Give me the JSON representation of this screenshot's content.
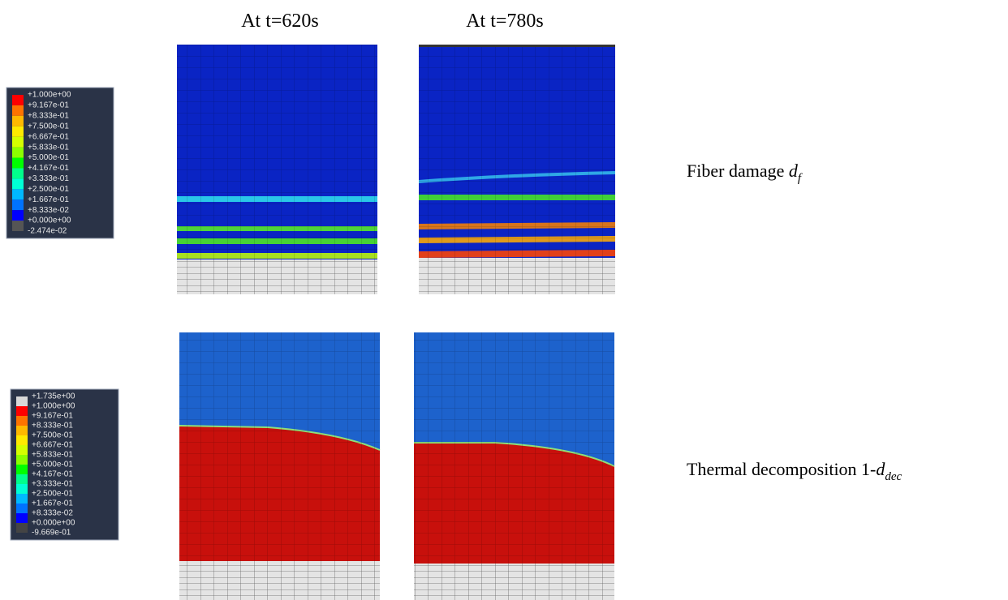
{
  "columns": [
    "At t=620s",
    "At t=780s"
  ],
  "legends": [
    {
      "labels": [
        "+1.000e+00",
        "+9.167e-01",
        "+8.333e-01",
        "+7.500e-01",
        "+6.667e-01",
        "+5.833e-01",
        "+5.000e-01",
        "+4.167e-01",
        "+3.333e-01",
        "+2.500e-01",
        "+1.667e-01",
        "+8.333e-02",
        "+0.000e+00",
        "-2.474e-02"
      ]
    },
    {
      "labels": [
        "+1.735e+00",
        "+1.000e+00",
        "+9.167e-01",
        "+8.333e-01",
        "+7.500e-01",
        "+6.667e-01",
        "+5.833e-01",
        "+5.000e-01",
        "+4.167e-01",
        "+3.333e-01",
        "+2.500e-01",
        "+1.667e-01",
        "+8.333e-02",
        "+0.000e+00",
        "-9.669e-01"
      ]
    }
  ],
  "rows": [
    {
      "label": "Fiber damage ",
      "symbol": "d",
      "subscript": "f"
    },
    {
      "label": "Thermal decomposition 1-",
      "symbol": "d",
      "subscript": "dec"
    }
  ]
}
